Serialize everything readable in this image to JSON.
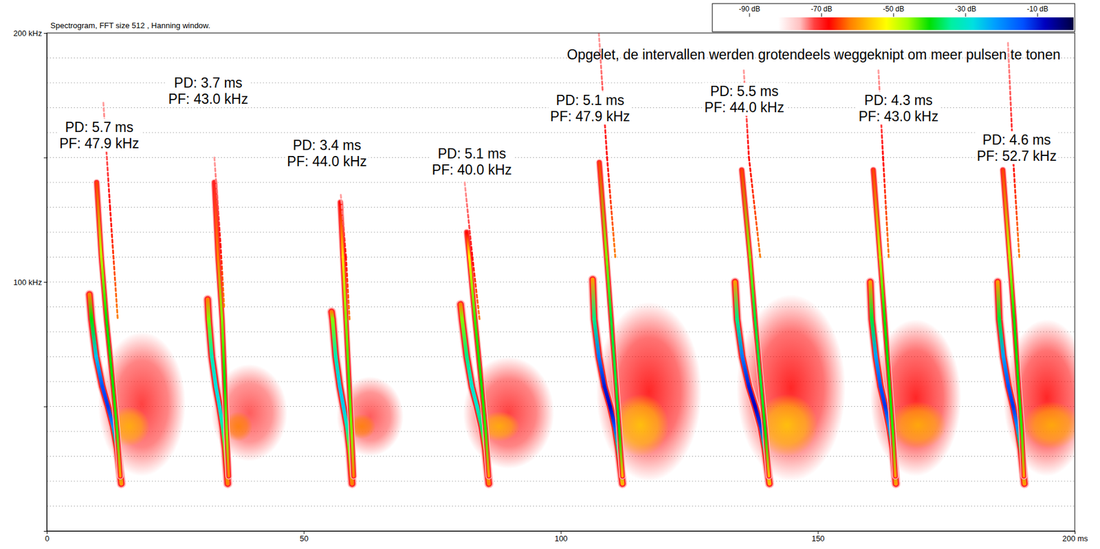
{
  "chart_data": {
    "type": "spectrogram",
    "title": "Spectrogram, FFT size 512 , Hanning window.",
    "annotation": "Opgelet, de intervallen werden grotendeels weggeknipt om meer pulsen te tonen",
    "xlim": [
      0,
      200
    ],
    "xticks": [
      0,
      50,
      100,
      150,
      {
        "value": 200,
        "label": "200 ms"
      }
    ],
    "ylim": [
      0,
      200
    ],
    "yticks": [
      {
        "value": 50,
        "label": null
      },
      {
        "value": 100,
        "label": "100 kHz"
      },
      {
        "value": 150,
        "label": null
      },
      {
        "value": 200,
        "label": "200 kHz"
      }
    ],
    "grid": true,
    "grid_values": [
      10,
      20,
      30,
      40,
      50,
      60,
      70,
      80,
      90,
      100,
      110,
      120,
      130,
      140,
      150,
      160,
      170,
      180,
      190
    ],
    "colorbar": {
      "range": [
        -100,
        0
      ],
      "ticks": [
        {
          "value": -90,
          "label": "-90 dB"
        },
        {
          "value": -70,
          "label": "-70 dB"
        },
        {
          "value": -50,
          "label": "-50 dB"
        },
        {
          "value": -30,
          "label": "-30 dB"
        },
        {
          "value": -10,
          "label": "-10 dB"
        }
      ],
      "stops": [
        {
          "value": -82,
          "color": "#ffffff"
        },
        {
          "value": -76,
          "color": "#ffc0c0"
        },
        {
          "value": -72,
          "color": "#ff4040"
        },
        {
          "value": -68,
          "color": "#ff0000"
        },
        {
          "value": -62,
          "color": "#ff8000"
        },
        {
          "value": -56,
          "color": "#ffd000"
        },
        {
          "value": -52,
          "color": "#ffff00"
        },
        {
          "value": -46,
          "color": "#a0ff00"
        },
        {
          "value": -40,
          "color": "#00e000"
        },
        {
          "value": -34,
          "color": "#00f0a0"
        },
        {
          "value": -28,
          "color": "#00e0e0"
        },
        {
          "value": -22,
          "color": "#00a0ff"
        },
        {
          "value": -14,
          "color": "#0050ff"
        },
        {
          "value": -8,
          "color": "#0000c0"
        },
        {
          "value": 0,
          "color": "#000040"
        }
      ]
    },
    "pulses": [
      {
        "label": [
          "PD: 5.7 ms",
          "PF: 47.9 kHz"
        ],
        "label_at": [
          10.2,
          158.6
        ],
        "noise": [
          {
            "t": [
              10,
              27
            ],
            "f": [
              22,
              80
            ],
            "level": -70
          },
          {
            "t": [
              12,
              20
            ],
            "f": [
              34,
              50
            ],
            "level": -58
          }
        ],
        "traces": [
          {
            "t": [
              8.3,
              8.7,
              9.6,
              10.8,
              11.9,
              12.9,
              13.7,
              14.5
            ],
            "f": [
              95,
              85,
              70,
              58,
              50,
              42,
              33,
              19
            ],
            "level": [
              -62,
              -40,
              -25,
              -14,
              -12,
              -20,
              -38,
              -60
            ]
          },
          {
            "t": [
              9.7,
              10.6,
              11.6,
              12.8,
              13.7,
              14.3
            ],
            "f": [
              140,
              110,
              85,
              60,
              40,
              22
            ],
            "level": [
              -65,
              -48,
              -40,
              -40,
              -42,
              -60
            ]
          },
          {
            "t": [
              11.0,
              12.3,
              13.8
            ],
            "f": [
              172,
              130,
              85
            ],
            "level": [
              -75,
              -68,
              -62
            ]
          }
        ]
      },
      {
        "label": [
          "PD: 3.7 ms",
          "PF: 43.0 kHz"
        ],
        "label_at": [
          31.4,
          176.5
        ],
        "noise": [
          {
            "t": [
              32,
              46.8
            ],
            "f": [
              28,
              67
            ],
            "level": -72
          },
          {
            "t": [
              34.5,
              40
            ],
            "f": [
              36,
              48
            ],
            "level": -62
          }
        ],
        "traces": [
          {
            "t": [
              31.3,
              31.5,
              32.1,
              32.9,
              33.6,
              34.2,
              34.7,
              35.2
            ],
            "f": [
              93,
              85,
              70,
              58,
              50,
              42,
              33,
              19
            ],
            "level": [
              -62,
              -45,
              -32,
              -28,
              -28,
              -34,
              -45,
              -62
            ]
          },
          {
            "t": [
              32.6,
              33.3,
              34.1,
              34.6,
              35.0,
              35.4
            ],
            "f": [
              140,
              110,
              85,
              60,
              40,
              22
            ],
            "level": [
              -70,
              -62,
              -45,
              -40,
              -45,
              -62
            ]
          },
          {
            "t": [
              32.6,
              33.8,
              34.5
            ],
            "f": [
              150,
              115,
              90
            ],
            "level": [
              -75,
              -68,
              -62
            ]
          }
        ]
      },
      {
        "label": [
          "PD: 3.4 ms",
          "PF: 44.0 kHz"
        ],
        "label_at": [
          54.5,
          151.3
        ],
        "noise": [
          {
            "t": [
              56.4,
              69.4
            ],
            "f": [
              30,
              62
            ],
            "level": -72
          },
          {
            "t": [
              58.5,
              64
            ],
            "f": [
              37,
              47
            ],
            "level": -62
          }
        ],
        "traces": [
          {
            "t": [
              55.4,
              55.6,
              56.2,
              57.0,
              57.7,
              58.4,
              58.9,
              59.4
            ],
            "f": [
              88,
              85,
              70,
              58,
              50,
              42,
              33,
              19
            ],
            "level": [
              -62,
              -45,
              -32,
              -26,
              -26,
              -32,
              -45,
              -62
            ]
          },
          {
            "t": [
              57.1,
              57.6,
              58.2,
              58.8,
              59.3,
              59.7
            ],
            "f": [
              132,
              110,
              85,
              60,
              40,
              22
            ],
            "level": [
              -68,
              -55,
              -45,
              -42,
              -45,
              -62
            ]
          },
          {
            "t": [
              57.2,
              58.2,
              58.9
            ],
            "f": [
              135,
              110,
              85
            ],
            "level": [
              -75,
              -68,
              -62
            ]
          }
        ]
      },
      {
        "label": [
          "PD: 5.1 ms",
          "PF: 40.0 kHz"
        ],
        "label_at": [
          82.7,
          148
        ],
        "noise": [
          {
            "t": [
              81,
              98.7
            ],
            "f": [
              25,
              70
            ],
            "level": -70
          },
          {
            "t": [
              84,
              92
            ],
            "f": [
              36,
              48
            ],
            "level": -58
          }
        ],
        "traces": [
          {
            "t": [
              80.5,
              80.8,
              81.7,
              82.7,
              83.7,
              84.6,
              85.3,
              86.0
            ],
            "f": [
              91,
              85,
              70,
              58,
              50,
              42,
              33,
              19
            ],
            "level": [
              -62,
              -45,
              -35,
              -30,
              -30,
              -36,
              -46,
              -62
            ]
          },
          {
            "t": [
              81.7,
              82.2,
              83.3,
              84.5,
              85.4,
              86.0
            ],
            "f": [
              120,
              110,
              85,
              60,
              40,
              22
            ],
            "level": [
              -68,
              -52,
              -42,
              -40,
              -42,
              -60
            ]
          },
          {
            "t": [
              81.3,
              82.8,
              84.2
            ],
            "f": [
              140,
              110,
              85
            ],
            "level": [
              -75,
              -68,
              -62
            ]
          }
        ]
      },
      {
        "label": [
          "PD: 5.1 ms",
          "PF: 47.9 kHz"
        ],
        "label_at": [
          105.7,
          169.5
        ],
        "noise": [
          {
            "t": [
              106.9,
              127.4
            ],
            "f": [
              20,
              92
            ],
            "level": -68
          },
          {
            "t": [
              110,
              121
            ],
            "f": [
              30,
              55
            ],
            "level": -56
          }
        ],
        "traces": [
          {
            "t": [
              106.2,
              106.5,
              107.4,
              108.5,
              109.6,
              110.5,
              111.2,
              112.0
            ],
            "f": [
              101,
              85,
              70,
              58,
              50,
              42,
              33,
              19
            ],
            "level": [
              -60,
              -35,
              -18,
              -10,
              -8,
              -14,
              -35,
              -58
            ]
          },
          {
            "t": [
              107.5,
              108.9,
              109.8,
              110.7,
              111.4,
              112.0
            ],
            "f": [
              148,
              110,
              85,
              60,
              40,
              22
            ],
            "level": [
              -65,
              -45,
              -38,
              -38,
              -40,
              -58
            ]
          },
          {
            "t": [
              107.4,
              109.0,
              110.6
            ],
            "f": [
              200,
              150,
              110
            ],
            "level": [
              -75,
              -68,
              -62
            ]
          }
        ]
      },
      {
        "label": [
          "PD: 5.5 ms",
          "PF: 44.0 kHz"
        ],
        "label_at": [
          135.7,
          173
        ],
        "noise": [
          {
            "t": [
              134.2,
              155.4
            ],
            "f": [
              20,
              95
            ],
            "level": -68
          },
          {
            "t": [
              138,
              150
            ],
            "f": [
              30,
              55
            ],
            "level": -56
          }
        ],
        "traces": [
          {
            "t": [
              133.9,
              134.3,
              135.3,
              136.6,
              137.8,
              138.9,
              139.7,
              140.6
            ],
            "f": [
              100,
              85,
              70,
              58,
              50,
              42,
              33,
              19
            ],
            "level": [
              -60,
              -35,
              -18,
              -10,
              -8,
              -12,
              -35,
              -58
            ]
          },
          {
            "t": [
              135.2,
              136.8,
              137.8,
              138.9,
              139.8,
              140.5
            ],
            "f": [
              145,
              110,
              85,
              60,
              40,
              22
            ],
            "level": [
              -65,
              -45,
              -38,
              -38,
              -40,
              -58
            ]
          },
          {
            "t": [
              135.6,
              136.6,
              138.8
            ],
            "f": [
              185,
              150,
              110
            ],
            "level": [
              -75,
              -68,
              -62
            ]
          }
        ]
      },
      {
        "label": [
          "PD: 4.3 ms",
          "PF: 43.0 kHz"
        ],
        "label_at": [
          165.7,
          169.5
        ],
        "noise": [
          {
            "t": [
              160.2,
              177.9
            ],
            "f": [
              22,
              85
            ],
            "level": -68
          },
          {
            "t": [
              164,
              175
            ],
            "f": [
              33,
              52
            ],
            "level": -58
          }
        ],
        "traces": [
          {
            "t": [
              160.2,
              160.5,
              161.3,
              162.2,
              163.1,
              163.9,
              164.6,
              165.2
            ],
            "f": [
              100,
              85,
              70,
              58,
              50,
              42,
              33,
              19
            ],
            "level": [
              -60,
              -38,
              -22,
              -14,
              -12,
              -20,
              -38,
              -60
            ]
          },
          {
            "t": [
              160.8,
              162.1,
              163.0,
              163.9,
              164.6,
              165.1
            ],
            "f": [
              145,
              110,
              85,
              60,
              40,
              22
            ],
            "level": [
              -65,
              -48,
              -40,
              -40,
              -42,
              -60
            ]
          },
          {
            "t": [
              161.8,
              162.7,
              163.8
            ],
            "f": [
              185,
              150,
              110
            ],
            "level": [
              -75,
              -68,
              -62
            ]
          }
        ]
      },
      {
        "label": [
          "PD: 4.6 ms",
          "PF: 52.7 kHz"
        ],
        "label_at": [
          188.7,
          153.6
        ],
        "noise": [
          {
            "t": [
              186.1,
              203
            ],
            "f": [
              22,
              85
            ],
            "level": -68
          },
          {
            "t": [
              190,
              201
            ],
            "f": [
              33,
              52
            ],
            "level": -58
          }
        ],
        "traces": [
          {
            "t": [
              185.0,
              185.3,
              186.1,
              187.1,
              188.0,
              188.8,
              189.5,
              190.2
            ],
            "f": [
              100,
              85,
              70,
              58,
              50,
              42,
              33,
              19
            ],
            "level": [
              -60,
              -38,
              -22,
              -14,
              -12,
              -20,
              -38,
              -60
            ]
          },
          {
            "t": [
              186.0,
              187.3,
              188.2,
              189.0,
              189.7,
              190.1
            ],
            "f": [
              145,
              110,
              85,
              60,
              40,
              22
            ],
            "level": [
              -65,
              -48,
              -40,
              -40,
              -42,
              -60
            ]
          },
          {
            "t": [
              187.0,
              188.0,
              189.2
            ],
            "f": [
              196,
              150,
              110
            ],
            "level": [
              -75,
              -68,
              -62
            ]
          }
        ]
      }
    ]
  }
}
